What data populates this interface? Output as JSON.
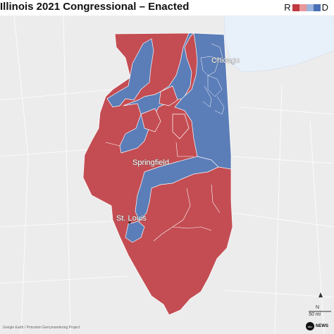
{
  "title": "Illinois 2021 Congressional – Enacted",
  "legend": {
    "left_letter": "R",
    "right_letter": "D",
    "swatches": [
      "#c0393f",
      "#e8979b",
      "#9bb5de",
      "#4a70b5"
    ]
  },
  "colors": {
    "republican": "#c34d53",
    "democrat": "#5b7db8",
    "lake": "#e8f0fa",
    "background": "#ececec",
    "roads": "#ffffff"
  },
  "cities": {
    "chicago": "Chicago",
    "springfield": "Springfield",
    "st_louis": "St. Louis"
  },
  "credit": "Google Earth / Princeton Gerrymandering Project",
  "scale_label": "50 mi",
  "north_label": "N",
  "logo_text": "NEWS",
  "logo_mark": "abc"
}
